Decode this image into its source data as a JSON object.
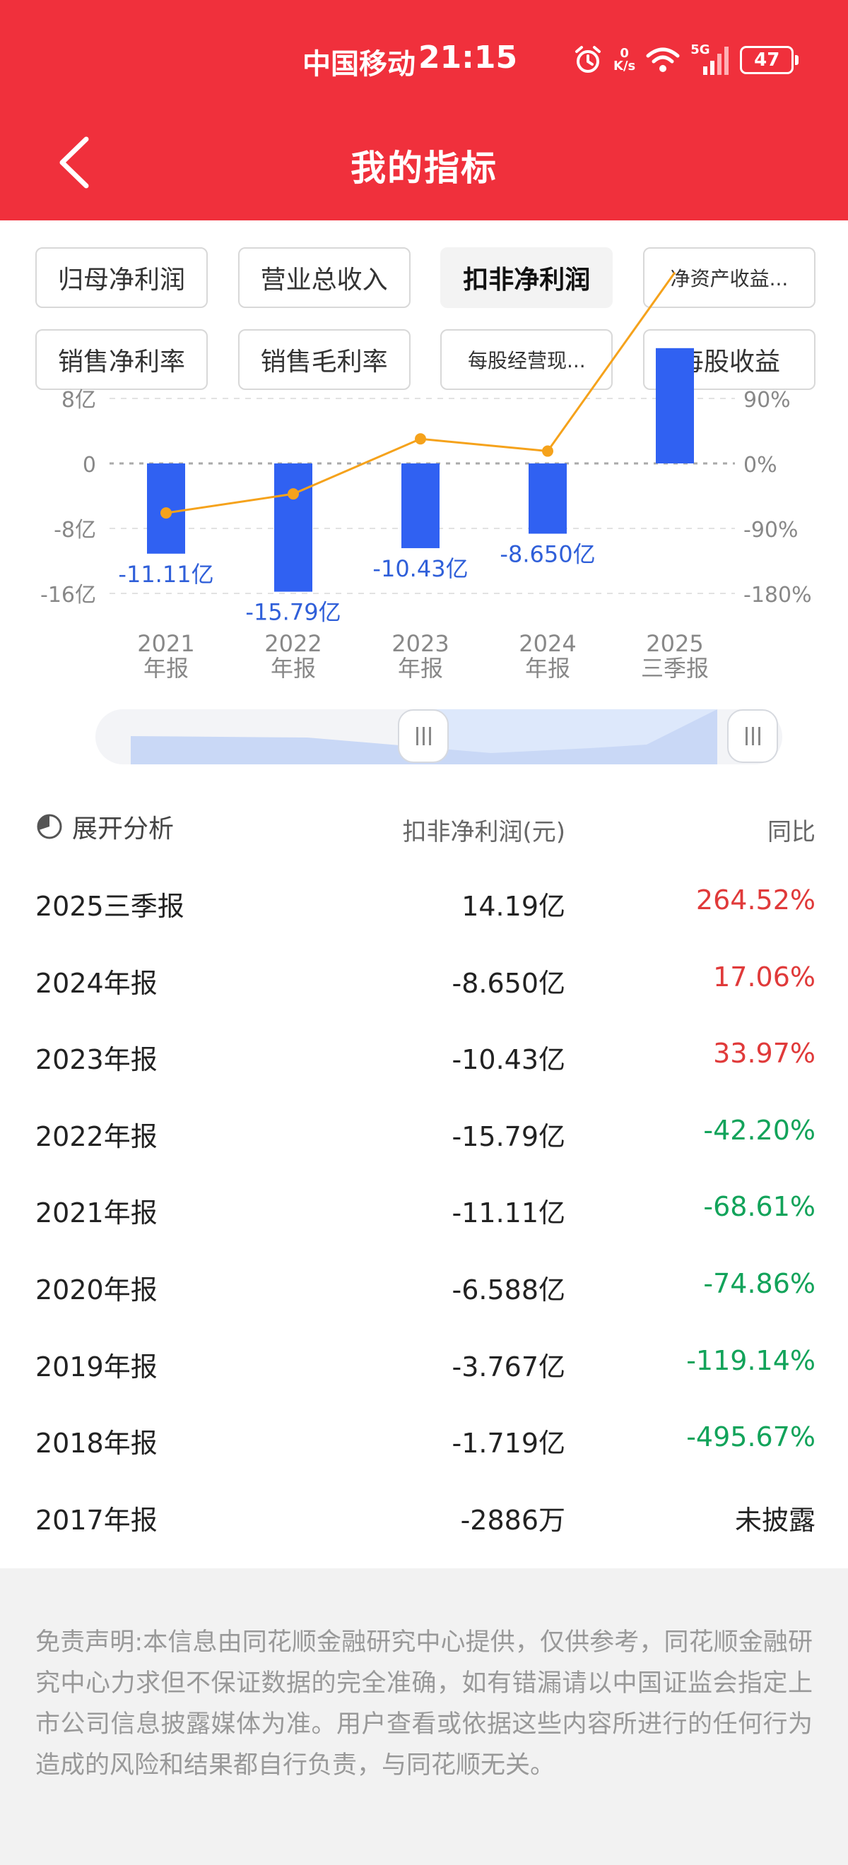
{
  "status_bar": {
    "carrier": "中国移动",
    "time": "21:15",
    "net_speed_value": "0",
    "net_speed_unit": "K/s",
    "network": "5G",
    "battery": "47",
    "icons": [
      "alarm-icon",
      "wifi-icon",
      "signal-icon",
      "battery-icon"
    ]
  },
  "header": {
    "title": "我的指标",
    "back_icon": "chevron-left-icon"
  },
  "tabs": [
    {
      "label": "归母净利润",
      "active": false
    },
    {
      "label": "营业总收入",
      "active": false
    },
    {
      "label": "扣非净利润",
      "active": true
    },
    {
      "label": "净资产收益...",
      "active": false
    },
    {
      "label": "销售净利率",
      "active": false
    },
    {
      "label": "销售毛利率",
      "active": false
    },
    {
      "label": "每股经营现...",
      "active": false
    },
    {
      "label": "每股收益",
      "active": false
    }
  ],
  "chart_data": {
    "type": "bar",
    "categories": [
      "2021年报",
      "2022年报",
      "2023年报",
      "2024年报",
      "2025三季报"
    ],
    "category_lines": [
      [
        "2021",
        "年报"
      ],
      [
        "2022",
        "年报"
      ],
      [
        "2023",
        "年报"
      ],
      [
        "2024",
        "年报"
      ],
      [
        "2025",
        "三季报"
      ]
    ],
    "series": [
      {
        "type": "bar",
        "values": [
          -11.11,
          -15.79,
          -10.43,
          -8.65,
          14.19
        ],
        "labels": [
          "-11.11亿",
          "-15.79亿",
          "-10.43亿",
          "-8.650亿",
          ""
        ],
        "color": "#3061f2"
      },
      {
        "type": "line",
        "values": [
          -68.61,
          -42.2,
          33.97,
          17.06,
          264.52
        ],
        "color": "#f5a21b"
      }
    ],
    "y_left_ticks": [
      {
        "value": 8,
        "label": "8亿"
      },
      {
        "value": 0,
        "label": "0"
      },
      {
        "value": -8,
        "label": "-8亿"
      },
      {
        "value": -16,
        "label": "-16亿"
      }
    ],
    "y_right_ticks": [
      {
        "value": 90,
        "label": "90%"
      },
      {
        "value": 0,
        "label": "0%"
      },
      {
        "value": -90,
        "label": "-90%"
      },
      {
        "value": -180,
        "label": "-180%"
      }
    ],
    "grid": "dashed-horizontal"
  },
  "slider": {
    "left_handle": "slider-left-handle",
    "right_handle": "slider-right-handle"
  },
  "table": {
    "analysis_label": "展开分析",
    "analysis_icon": "pie-chart-icon",
    "col_value": "扣非净利润(元)",
    "col_yoy": "同比",
    "rows": [
      {
        "period": "2025三季报",
        "value": "14.19亿",
        "yoy": "264.52%",
        "trend": "up"
      },
      {
        "period": "2024年报",
        "value": "-8.650亿",
        "yoy": "17.06%",
        "trend": "up"
      },
      {
        "period": "2023年报",
        "value": "-10.43亿",
        "yoy": "33.97%",
        "trend": "up"
      },
      {
        "period": "2022年报",
        "value": "-15.79亿",
        "yoy": "-42.20%",
        "trend": "down"
      },
      {
        "period": "2021年报",
        "value": "-11.11亿",
        "yoy": "-68.61%",
        "trend": "down"
      },
      {
        "period": "2020年报",
        "value": "-6.588亿",
        "yoy": "-74.86%",
        "trend": "down"
      },
      {
        "period": "2019年报",
        "value": "-3.767亿",
        "yoy": "-119.14%",
        "trend": "down"
      },
      {
        "period": "2018年报",
        "value": "-1.719亿",
        "yoy": "-495.67%",
        "trend": "down"
      },
      {
        "period": "2017年报",
        "value": "-2886万",
        "yoy": "未披露",
        "trend": "na"
      }
    ]
  },
  "disclaimer": "免责声明:本信息由同花顺金融研究中心提供，仅供参考，同花顺金融研究中心力求但不保证数据的完全准确，如有错漏请以中国证监会指定上市公司信息披露媒体为准。用户查看或依据这些内容所进行的任何行为造成的风险和结果都自行负责，与同花顺无关。"
}
